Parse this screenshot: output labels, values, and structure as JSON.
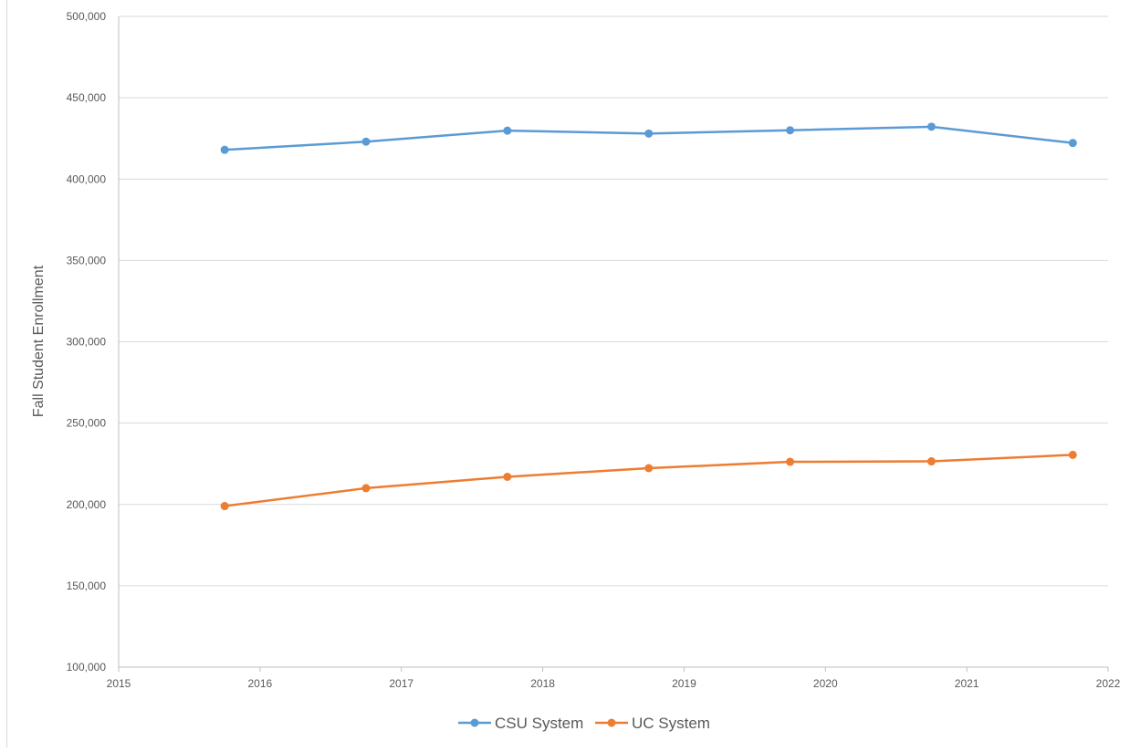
{
  "chart_data": {
    "type": "line",
    "title": "",
    "xlabel": "",
    "ylabel": "Fall Student Enrollment",
    "xlim": [
      2015,
      2022
    ],
    "ylim": [
      100000,
      500000
    ],
    "x_ticks": [
      "2015",
      "2016",
      "2017",
      "2018",
      "2019",
      "2020",
      "2021",
      "2022"
    ],
    "y_ticks": [
      "100,000",
      "150,000",
      "200,000",
      "250,000",
      "300,000",
      "350,000",
      "400,000",
      "450,000",
      "500,000"
    ],
    "grid": "horizontal",
    "legend_position": "bottom",
    "x": [
      2015.75,
      2016.75,
      2017.75,
      2018.75,
      2019.75,
      2020.75,
      2021.75
    ],
    "series": [
      {
        "name": "CSU System",
        "color": "#5b9bd5",
        "values": [
          418000,
          423000,
          429800,
          428000,
          430000,
          432200,
          422200
        ]
      },
      {
        "name": "UC System",
        "color": "#ed7d31",
        "values": [
          199000,
          210000,
          217000,
          222300,
          226200,
          226500,
          230500
        ]
      }
    ]
  }
}
